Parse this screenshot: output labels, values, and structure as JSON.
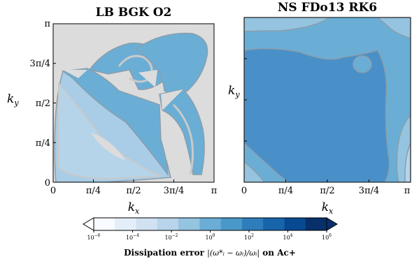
{
  "chart_data": [
    {
      "type": "contour",
      "title": "LB BGK O2",
      "xlabel": "k_x",
      "ylabel": "k_y",
      "xlim": [
        "0",
        "π"
      ],
      "ylim": [
        "0",
        "π"
      ],
      "xticks": [
        "0",
        "π/4",
        "π/2",
        "3π/4",
        "π"
      ],
      "yticks": [
        "0",
        "π/4",
        "π/2",
        "3π/4",
        "π"
      ],
      "background_color": "#dcdcdc",
      "contour_fill_colors": [
        "#a9cde6",
        "#6aaed6"
      ]
    },
    {
      "type": "contour",
      "title": "NS FDo13 RK6",
      "xlabel": "k_x",
      "ylabel": "k_y",
      "xlim": [
        "0",
        "π"
      ],
      "ylim": [
        "0",
        "π"
      ],
      "xticks": [
        "0",
        "π/4",
        "π/2",
        "3π/4",
        "π"
      ],
      "contour_fill_colors": [
        "#a9cde6",
        "#6aaed6",
        "#5fa3d3",
        "#4a90c8"
      ]
    }
  ],
  "colorbar": {
    "label_prefix": "Dissipation error",
    "label_suffix": "on Ac+",
    "label_formula": "|(ω*ᵢ − ωᵢ)/ωᵢ|",
    "ticks": [
      {
        "base": "10",
        "exp": "−6"
      },
      {
        "base": "10",
        "exp": "−4"
      },
      {
        "base": "10",
        "exp": "−2"
      },
      {
        "base": "10",
        "exp": "0"
      },
      {
        "base": "10",
        "exp": "2"
      },
      {
        "base": "10",
        "exp": "4"
      },
      {
        "base": "10",
        "exp": "6"
      }
    ],
    "colors": [
      "#f7fbff",
      "#e3eef9",
      "#d0e1f2",
      "#b7d4ea",
      "#94c4df",
      "#6aaed6",
      "#4a98c9",
      "#2e7ebc",
      "#1764ab",
      "#084a91",
      "#08306b"
    ],
    "extend": "both"
  }
}
